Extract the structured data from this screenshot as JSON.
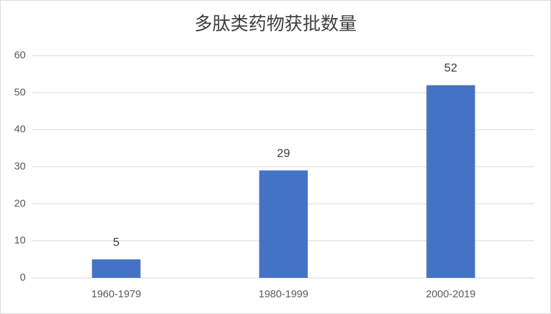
{
  "chart_data": {
    "type": "bar",
    "title": "多肽类药物获批数量",
    "categories": [
      "1960-1979",
      "1980-1999",
      "2000-2019"
    ],
    "values": [
      5,
      29,
      52
    ],
    "color": "#4472c4",
    "ylim": [
      0,
      60
    ],
    "yticks": [
      0,
      10,
      20,
      30,
      40,
      50,
      60
    ],
    "grid": true,
    "data_labels": true
  }
}
